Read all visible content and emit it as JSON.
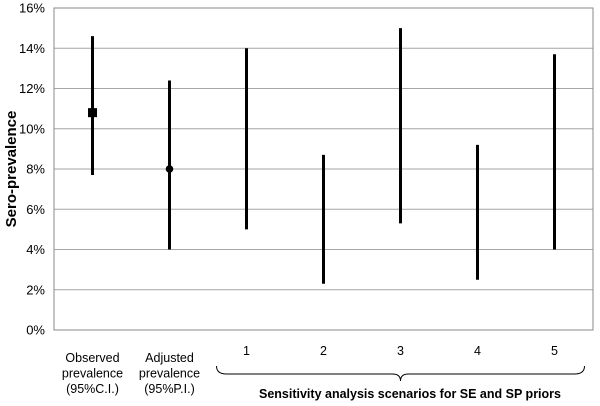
{
  "chart_data": {
    "type": "interval",
    "ylabel": "Sero-prevalence",
    "ylim": [
      0,
      16
    ],
    "yticks": [
      "0%",
      "2%",
      "4%",
      "6%",
      "8%",
      "10%",
      "12%",
      "14%",
      "16%"
    ],
    "grid": true,
    "categories": [
      [
        "Observed",
        "prevalence",
        "(95%C.I.)"
      ],
      [
        "Adjusted",
        "prevalence",
        "(95%P.I.)"
      ],
      [
        "1"
      ],
      [
        "2"
      ],
      [
        "3"
      ],
      [
        "4"
      ],
      [
        "5"
      ]
    ],
    "intervals": [
      {
        "low": 7.7,
        "high": 14.6,
        "point": 10.8,
        "marker": "square"
      },
      {
        "low": 4.0,
        "high": 12.4,
        "point": 8.0,
        "marker": "circle"
      },
      {
        "low": 5.0,
        "high": 14.0,
        "point": null,
        "marker": "none"
      },
      {
        "low": 2.3,
        "high": 8.7,
        "point": null,
        "marker": "none"
      },
      {
        "low": 5.3,
        "high": 15.0,
        "point": null,
        "marker": "none"
      },
      {
        "low": 2.5,
        "high": 9.2,
        "point": null,
        "marker": "none"
      },
      {
        "low": 4.0,
        "high": 13.7,
        "point": null,
        "marker": "none"
      }
    ],
    "brace_label": "Sensitivity analysis scenarios for SE and SP priors"
  }
}
